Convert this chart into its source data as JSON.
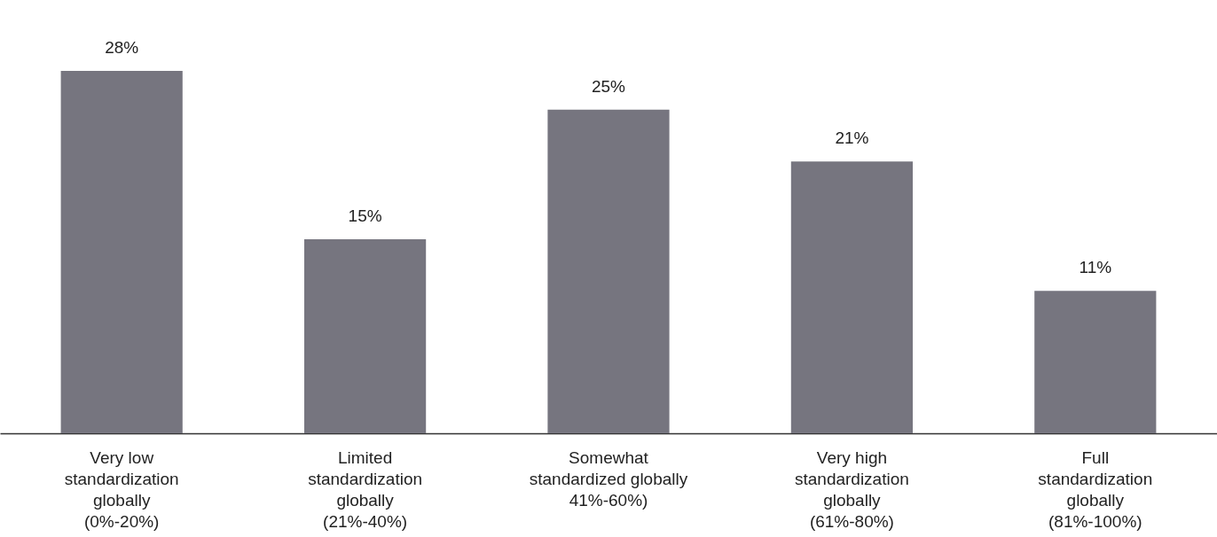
{
  "chart_data": {
    "type": "bar",
    "categories": [
      "Very low\nstandardization\nglobally\n(0%-20%)",
      "Limited\nstandardization\nglobally\n(21%-40%)",
      "Somewhat\nstandardized globally\n41%-60%)",
      "Very high\nstandardization\nglobally\n(61%-80%)",
      "Full\nstandardization\nglobally\n(81%-100%)"
    ],
    "values": [
      28,
      15,
      25,
      21,
      11
    ],
    "value_labels": [
      "28%",
      "15%",
      "25%",
      "21%",
      "11%"
    ],
    "color": "#76757f"
  }
}
